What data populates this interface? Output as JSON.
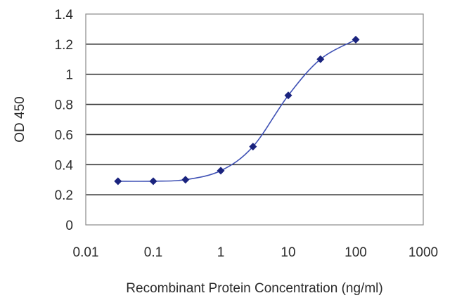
{
  "chart_data": {
    "type": "scatter",
    "xscale": "log",
    "xlim": [
      0.01,
      1000
    ],
    "ylim": [
      0,
      1.4
    ],
    "xticks": [
      "0.01",
      "0.1",
      "1",
      "10",
      "100",
      "1000"
    ],
    "yticks": [
      "0",
      "0.2",
      "0.4",
      "0.6",
      "0.8",
      "1",
      "1.2",
      "1.4"
    ],
    "xlabel": "Recombinant Protein Concentration (ng/ml)",
    "ylabel": "OD 450",
    "grid": "horizontal",
    "legend": "none",
    "series": [
      {
        "x": [
          0.03,
          0.1,
          0.3,
          1,
          3,
          10,
          30,
          100
        ],
        "y": [
          0.29,
          0.29,
          0.3,
          0.36,
          0.52,
          0.86,
          1.1,
          1.23
        ],
        "fit_curve": true
      }
    ],
    "colors": {
      "series": "#1a237e",
      "curve": "#3f51b5",
      "grid": "#3a3a3a"
    }
  }
}
